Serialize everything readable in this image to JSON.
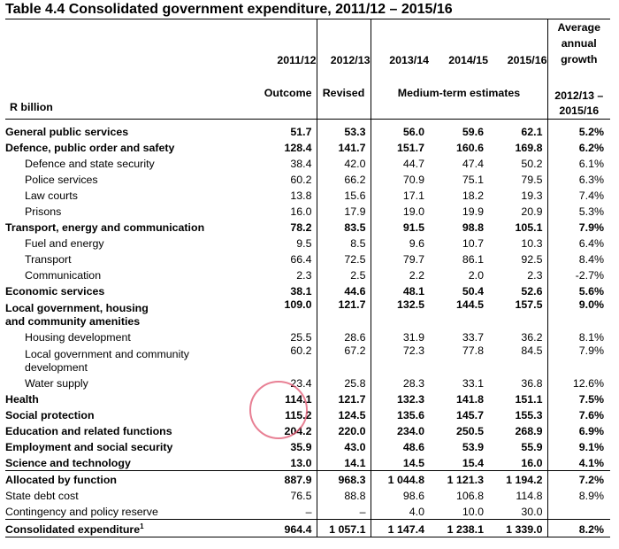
{
  "title": "Table 4.4  Consolidated government expenditure, 2011/12 – 2015/16",
  "header": {
    "years": [
      "2011/12",
      "2012/13",
      "2013/14",
      "2014/15",
      "2015/16"
    ],
    "growth_top": "Average",
    "growth_mid": "annual",
    "growth_bot": "growth",
    "outcome": "Outcome",
    "revised": "Revised",
    "medium_term": "Medium-term estimates",
    "growth_period_1": "2012/13 –",
    "growth_period_2": "2015/16",
    "unit": "R billion"
  },
  "rows": [
    {
      "label": "General public services",
      "bold": true,
      "values": [
        "51.7",
        "53.3",
        "56.0",
        "59.6",
        "62.1"
      ],
      "growth": "5.2%"
    },
    {
      "label": "Defence, public order and safety",
      "bold": true,
      "values": [
        "128.4",
        "141.7",
        "151.7",
        "160.6",
        "169.8"
      ],
      "growth": "6.2%"
    },
    {
      "label": "Defence and state security",
      "indent": true,
      "values": [
        "38.4",
        "42.0",
        "44.7",
        "47.4",
        "50.2"
      ],
      "growth": "6.1%"
    },
    {
      "label": "Police services",
      "indent": true,
      "values": [
        "60.2",
        "66.2",
        "70.9",
        "75.1",
        "79.5"
      ],
      "growth": "6.3%"
    },
    {
      "label": "Law courts",
      "indent": true,
      "values": [
        "13.8",
        "15.6",
        "17.1",
        "18.2",
        "19.3"
      ],
      "growth": "7.4%"
    },
    {
      "label": "Prisons",
      "indent": true,
      "values": [
        "16.0",
        "17.9",
        "19.0",
        "19.9",
        "20.9"
      ],
      "growth": "5.3%"
    },
    {
      "label": "Transport, energy and communication",
      "bold": true,
      "values": [
        "78.2",
        "83.5",
        "91.5",
        "98.8",
        "105.1"
      ],
      "growth": "7.9%"
    },
    {
      "label": "Fuel and energy",
      "indent": true,
      "values": [
        "9.5",
        "8.5",
        "9.6",
        "10.7",
        "10.3"
      ],
      "growth": "6.4%"
    },
    {
      "label": "Transport",
      "indent": true,
      "values": [
        "66.4",
        "72.5",
        "79.7",
        "86.1",
        "92.5"
      ],
      "growth": "8.4%"
    },
    {
      "label": "Communication",
      "indent": true,
      "values": [
        "2.3",
        "2.5",
        "2.2",
        "2.0",
        "2.3"
      ],
      "growth": "-2.7%"
    },
    {
      "label": "Economic services",
      "bold": true,
      "values": [
        "38.1",
        "44.6",
        "48.1",
        "50.4",
        "52.6"
      ],
      "growth": "5.6%"
    },
    {
      "label": "Local government, housing",
      "label2": "and community  amenities",
      "bold": true,
      "values": [
        "109.0",
        "121.7",
        "132.5",
        "144.5",
        "157.5"
      ],
      "growth": "9.0%"
    },
    {
      "label": "Housing development",
      "indent": true,
      "values": [
        "25.5",
        "28.6",
        "31.9",
        "33.7",
        "36.2"
      ],
      "growth": "8.1%"
    },
    {
      "label": "Local government and community",
      "label2": "development",
      "indent": true,
      "values": [
        "60.2",
        "67.2",
        "72.3",
        "77.8",
        "84.5"
      ],
      "growth": "7.9%"
    },
    {
      "label": "Water supply",
      "indent": true,
      "values": [
        "23.4",
        "25.8",
        "28.3",
        "33.1",
        "36.8"
      ],
      "growth": "12.6%"
    },
    {
      "label": "Health",
      "bold": true,
      "values": [
        "114.1",
        "121.7",
        "132.3",
        "141.8",
        "151.1"
      ],
      "growth": "7.5%"
    },
    {
      "label": "Social protection",
      "bold": true,
      "values": [
        "115.2",
        "124.5",
        "135.6",
        "145.7",
        "155.3"
      ],
      "growth": "7.6%"
    },
    {
      "label": "Education and related functions",
      "bold": true,
      "values": [
        "204.2",
        "220.0",
        "234.0",
        "250.5",
        "268.9"
      ],
      "growth": "6.9%"
    },
    {
      "label": "Employment and social security",
      "bold": true,
      "values": [
        "35.9",
        "43.0",
        "48.6",
        "53.9",
        "55.9"
      ],
      "growth": "9.1%"
    },
    {
      "label": "Science and technology",
      "bold": true,
      "values": [
        "13.0",
        "14.1",
        "14.5",
        "15.4",
        "16.0"
      ],
      "growth": "4.1%"
    },
    {
      "label": "Allocated by function",
      "bold": true,
      "topline": true,
      "values": [
        "887.9",
        "968.3",
        "1 044.8",
        "1 121.3",
        "1 194.2"
      ],
      "growth": "7.2%"
    },
    {
      "label": "State debt cost",
      "values": [
        "76.5",
        "88.8",
        "98.6",
        "106.8",
        "114.8"
      ],
      "growth": "8.9%"
    },
    {
      "label": "Contingency and policy reserve",
      "values": [
        "–",
        "–",
        "4.0",
        "10.0",
        "30.0"
      ],
      "growth": ""
    },
    {
      "label": "Consolidated expenditure",
      "sup": "1",
      "bold": true,
      "topline": true,
      "bottomline": true,
      "values": [
        "964.4",
        "1 057.1",
        "1 147.4",
        "1 238.1",
        "1 339.0"
      ],
      "growth": "8.2%"
    }
  ],
  "colors": {
    "annotation_circle": "#e05570"
  }
}
